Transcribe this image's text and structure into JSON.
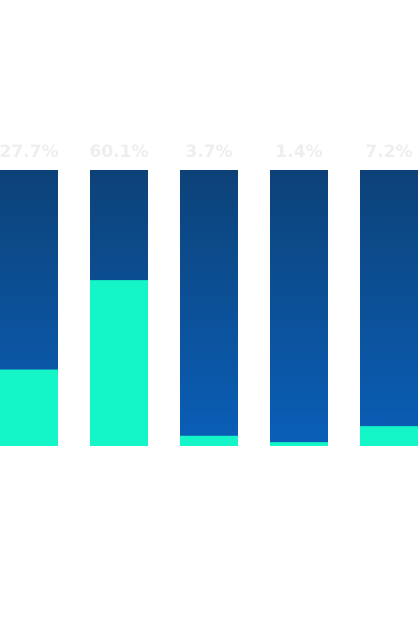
{
  "chart_data": {
    "type": "bar",
    "stacked": true,
    "categories": [
      "",
      "",
      "",
      "",
      ""
    ],
    "values": [
      27.7,
      60.1,
      3.7,
      1.4,
      7.2
    ],
    "data_labels": [
      "27.7%",
      "60.1%",
      "3.7%",
      "1.4%",
      "7.2%"
    ],
    "title": "",
    "xlabel": "",
    "ylabel": "",
    "ylim": [
      0,
      100
    ],
    "grid": false,
    "legend": "none",
    "series": [
      {
        "values": [
          27.7,
          60.1,
          3.7,
          1.4,
          7.2
        ],
        "color": "#14f5c8"
      },
      {
        "values": [
          72.3,
          39.9,
          96.3,
          98.6,
          92.8
        ],
        "color_top": "#0d4278",
        "color_bottom": "#0a5fb8"
      }
    ]
  }
}
